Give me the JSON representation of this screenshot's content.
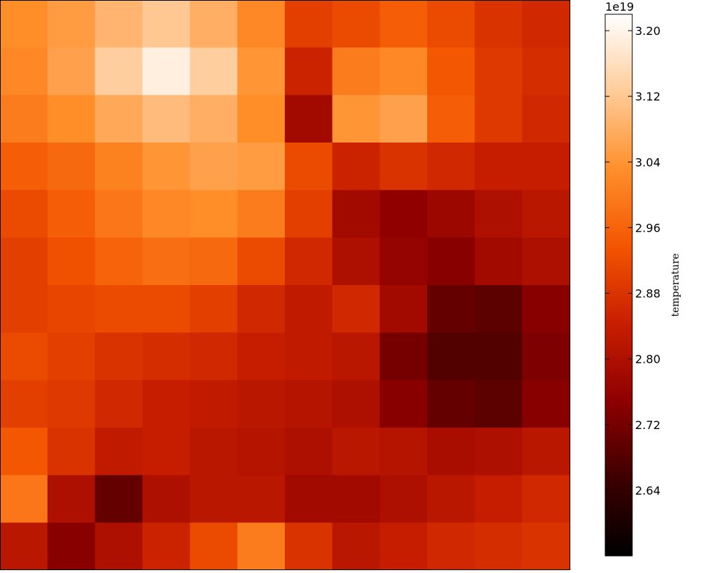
{
  "chart_data": {
    "type": "heatmap",
    "title": "",
    "xlabel": "",
    "ylabel": "",
    "colormap": "gist_heat",
    "colormap_stops": [
      "#000000",
      "#3d0000",
      "#8f0000",
      "#c81e00",
      "#f35500",
      "#ff8f2a",
      "#ffcc99",
      "#ffffff"
    ],
    "colorbar": {
      "label": "temperature",
      "offset_text": "1e19",
      "vmin": 2.56,
      "vmax": 3.22,
      "ticks": [
        2.64,
        2.72,
        2.8,
        2.88,
        2.96,
        3.04,
        3.12,
        3.2
      ],
      "tick_labels": [
        "2.64",
        "2.72",
        "2.80",
        "2.88",
        "2.96",
        "3.04",
        "3.12",
        "3.20"
      ]
    },
    "field": {
      "grid": [
        12,
        12
      ],
      "values": [
        [
          3.03,
          3.05,
          3.09,
          3.12,
          3.08,
          3.02,
          2.9,
          2.92,
          2.95,
          2.92,
          2.88,
          2.86
        ],
        [
          3.02,
          3.06,
          3.13,
          3.19,
          3.13,
          3.04,
          2.85,
          3.0,
          3.02,
          2.94,
          2.89,
          2.87
        ],
        [
          3.0,
          3.03,
          3.07,
          3.1,
          3.08,
          3.03,
          2.78,
          3.04,
          3.06,
          2.95,
          2.89,
          2.86
        ],
        [
          2.95,
          2.97,
          3.01,
          3.04,
          3.06,
          3.05,
          2.92,
          2.85,
          2.88,
          2.86,
          2.84,
          2.84
        ],
        [
          2.92,
          2.95,
          2.99,
          3.02,
          3.03,
          3.0,
          2.9,
          2.78,
          2.75,
          2.77,
          2.8,
          2.82
        ],
        [
          2.9,
          2.93,
          2.96,
          2.98,
          2.97,
          2.92,
          2.86,
          2.8,
          2.76,
          2.74,
          2.78,
          2.8
        ],
        [
          2.9,
          2.91,
          2.92,
          2.92,
          2.9,
          2.86,
          2.83,
          2.86,
          2.78,
          2.7,
          2.69,
          2.74
        ],
        [
          2.92,
          2.9,
          2.88,
          2.87,
          2.86,
          2.84,
          2.83,
          2.82,
          2.72,
          2.68,
          2.68,
          2.73
        ],
        [
          2.9,
          2.89,
          2.86,
          2.84,
          2.83,
          2.82,
          2.81,
          2.8,
          2.74,
          2.7,
          2.69,
          2.74
        ],
        [
          2.94,
          2.88,
          2.83,
          2.84,
          2.82,
          2.81,
          2.8,
          2.82,
          2.81,
          2.79,
          2.8,
          2.82
        ],
        [
          2.99,
          2.8,
          2.7,
          2.8,
          2.82,
          2.82,
          2.78,
          2.78,
          2.8,
          2.82,
          2.84,
          2.86
        ],
        [
          2.82,
          2.74,
          2.8,
          2.85,
          2.92,
          3.0,
          2.88,
          2.82,
          2.84,
          2.86,
          2.87,
          2.88
        ]
      ]
    }
  }
}
